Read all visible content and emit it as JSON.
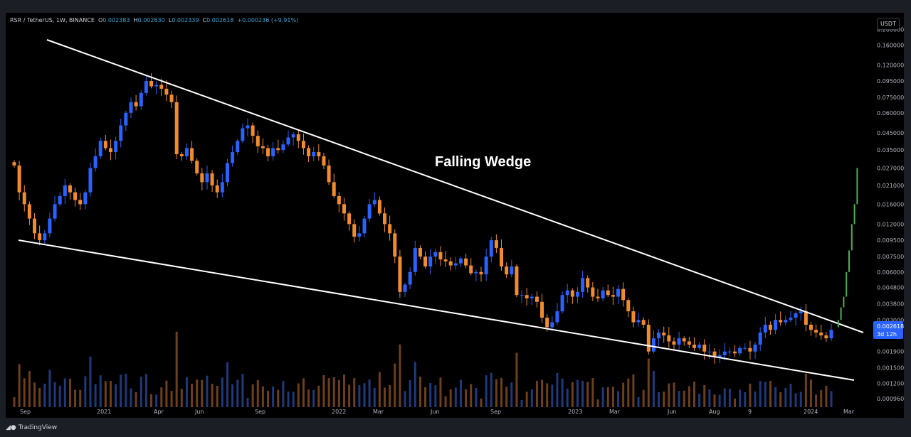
{
  "legend": {
    "symbol": "RSR / TetherUS, 1W, BINANCE",
    "open_label": "O",
    "open": "0.002383",
    "high_label": "H",
    "high": "0.002630",
    "low_label": "L",
    "low": "0.002339",
    "close_label": "C",
    "close": "0.002618",
    "change": "+0.000236 (+9.91%)"
  },
  "currency": "USDT",
  "branding": "TradingView",
  "chart_data": {
    "type": "candlestick",
    "title": "Falling Wedge",
    "annotation": "Falling Wedge",
    "y_scale": "log",
    "ylim": [
      0.00085,
      0.23
    ],
    "y_ticks": [
      "0.200000",
      "0.160000",
      "0.120000",
      "0.095000",
      "0.075000",
      "0.060000",
      "0.045000",
      "0.035000",
      "0.027000",
      "0.021000",
      "0.016000",
      "0.012000",
      "0.009500",
      "0.007500",
      "0.006000",
      "0.004800",
      "0.003800",
      "0.003000",
      "0.002618",
      "0.001900",
      "0.001500",
      "0.001200",
      "0.000960"
    ],
    "x_ticks": [
      "Sep",
      "2021",
      "Apr",
      "Jun",
      "Sep",
      "2022",
      "Mar",
      "Jun",
      "Sep",
      "2023",
      "Mar",
      "Jun",
      "Aug",
      "9",
      "2024",
      "Mar"
    ],
    "last_price": "0.002618",
    "countdown": "3d 12h",
    "colors": {
      "up": "#2962ff",
      "down": "#f28b2e",
      "background": "#000000",
      "projection": "#4caf50",
      "trendline": "#ffffff",
      "price_tag": "#2962ff"
    },
    "candles_close": [
      0.028,
      0.019,
      0.016,
      0.013,
      0.0105,
      0.0095,
      0.0105,
      0.013,
      0.016,
      0.018,
      0.021,
      0.019,
      0.017,
      0.016,
      0.019,
      0.027,
      0.032,
      0.04,
      0.036,
      0.034,
      0.04,
      0.05,
      0.06,
      0.07,
      0.066,
      0.08,
      0.095,
      0.088,
      0.09,
      0.085,
      0.078,
      0.07,
      0.033,
      0.032,
      0.036,
      0.03,
      0.025,
      0.022,
      0.025,
      0.021,
      0.019,
      0.022,
      0.029,
      0.034,
      0.04,
      0.048,
      0.05,
      0.043,
      0.037,
      0.036,
      0.032,
      0.036,
      0.035,
      0.038,
      0.042,
      0.044,
      0.04,
      0.036,
      0.032,
      0.034,
      0.032,
      0.028,
      0.022,
      0.018,
      0.016,
      0.014,
      0.012,
      0.01,
      0.0105,
      0.013,
      0.016,
      0.017,
      0.014,
      0.012,
      0.0105,
      0.0075,
      0.0045,
      0.005,
      0.006,
      0.0085,
      0.0075,
      0.0065,
      0.0075,
      0.008,
      0.0072,
      0.007,
      0.0066,
      0.0068,
      0.0073,
      0.0066,
      0.0059,
      0.006,
      0.0058,
      0.0075,
      0.0095,
      0.0085,
      0.0065,
      0.0058,
      0.0065,
      0.0043,
      0.0043,
      0.0041,
      0.0042,
      0.0039,
      0.0031,
      0.0027,
      0.0029,
      0.0034,
      0.0043,
      0.0046,
      0.0042,
      0.0045,
      0.0055,
      0.0048,
      0.0042,
      0.0041,
      0.0046,
      0.0043,
      0.0042,
      0.0047,
      0.004,
      0.0034,
      0.0029,
      0.003,
      0.0028,
      0.0019,
      0.0023,
      0.0025,
      0.0024,
      0.0022,
      0.0021,
      0.0023,
      0.0022,
      0.0021,
      0.002,
      0.0021,
      0.0019,
      0.0019,
      0.00175,
      0.0018,
      0.0019,
      0.0019,
      0.00185,
      0.002,
      0.002,
      0.0019,
      0.0021,
      0.0025,
      0.0028,
      0.0026,
      0.003,
      0.0029,
      0.003,
      0.0031,
      0.0033,
      0.0034,
      0.0028,
      0.0026,
      0.0025,
      0.0024,
      0.0023,
      0.0026
    ],
    "projection_points": [
      0.0027,
      0.003,
      0.0036,
      0.0042,
      0.006,
      0.0082,
      0.012,
      0.016,
      0.027
    ],
    "upper_trendline": {
      "start": [
        "2020-09",
        0.19
      ],
      "end": [
        "2024-04",
        0.0025
      ]
    },
    "lower_trendline": {
      "start": [
        "2020-09",
        0.0095
      ],
      "end": [
        "2024-04",
        0.00115
      ]
    }
  }
}
